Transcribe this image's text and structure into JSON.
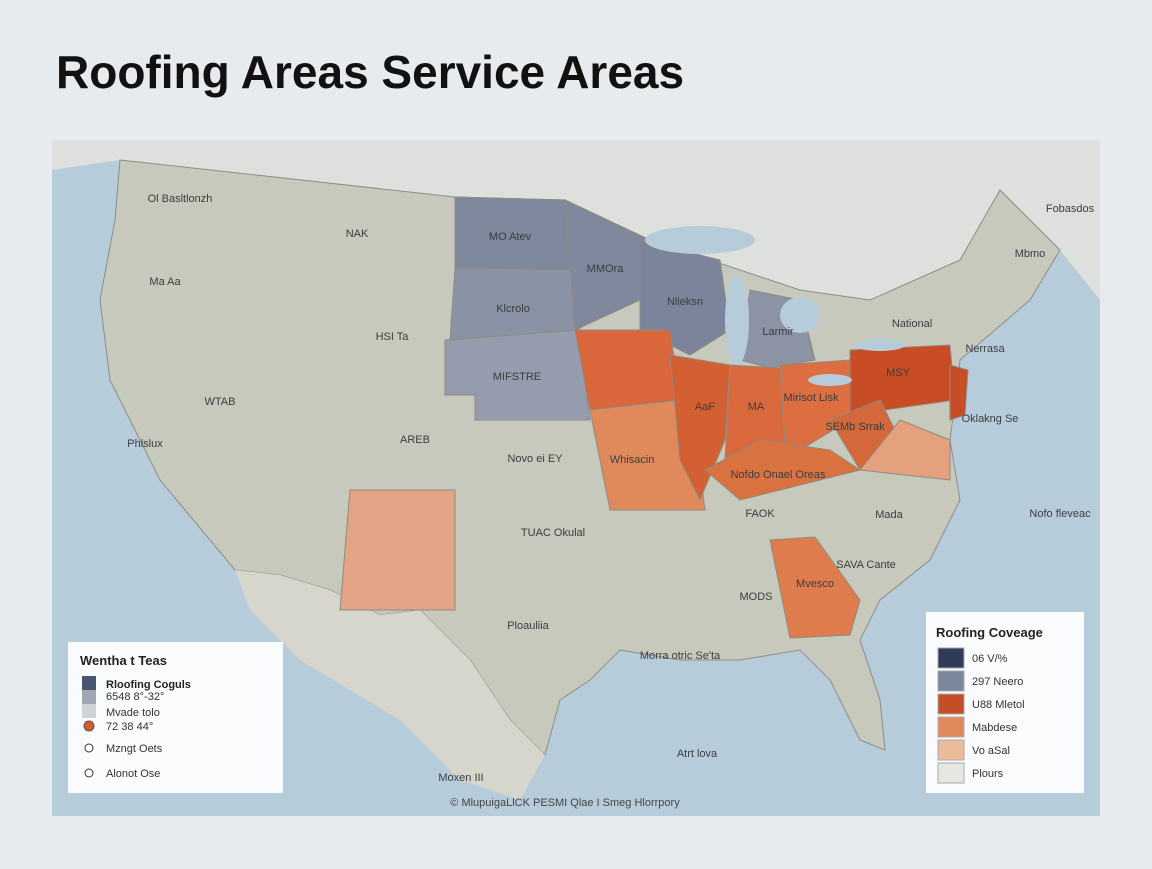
{
  "header": {
    "title": "Roofing Areas Service Areas"
  },
  "map": {
    "labels": [
      "Ol Basltlonzh",
      "NAK",
      "MO Atev",
      "Fobasdos",
      "Mbmo",
      "MMOra",
      "Ma Aa",
      "Nlieksn",
      "Klcrolo",
      "HSI Ta",
      "Larmir",
      "National",
      "Nerrasa",
      "MIFSTRE",
      "MSY",
      "WTAB",
      "AaF",
      "MA",
      "Mirisot Lisk",
      "Oklakng Se",
      "Phlslux",
      "AREB",
      "SEMb Srrak",
      "Novo ei EY",
      "Whisacin",
      "Nofdo Onael Oreas",
      "Nofo fleveac",
      "FAOK",
      "Mada",
      "TUAC Okulal",
      "SAVA Cante",
      "Mvesco",
      "MODS",
      "Ploauliia",
      "Morra otric Se'ta",
      "Atrt lova",
      "Moxen III"
    ],
    "attribution": "© MlupuigaLlCK PESMI Qlae I Smeg Hlorrpory"
  },
  "legend_left": {
    "title": "Wentha t Teas",
    "items": [
      "Rloofing Coguls",
      "6548 8°-32°",
      "Mvade tolo",
      "72 38 44°",
      "Mzngt Oets",
      "Alonot Ose"
    ]
  },
  "legend_right": {
    "title": "Roofing Coveage",
    "items": [
      {
        "label": "06 V/%",
        "color": "#2f3b58"
      },
      {
        "label": "297 Neero",
        "color": "#7b879b"
      },
      {
        "label": "U88 Mletol",
        "color": "#c44f26"
      },
      {
        "label": "Mabdese",
        "color": "#e08a5c"
      },
      {
        "label": "Vo aSal",
        "color": "#ecbb9c"
      },
      {
        "label": "Plours",
        "color": "#e6e7e3"
      }
    ]
  }
}
